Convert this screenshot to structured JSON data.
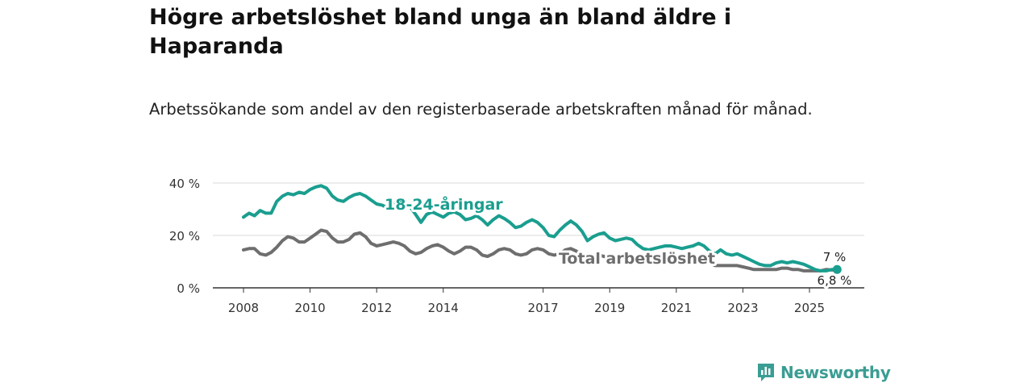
{
  "header": {
    "title": "Högre arbetslöshet bland unga än bland äldre i Haparanda",
    "subtitle": "Arbetssökande som andel av den registerbaserade arbetskraften månad för månad."
  },
  "branding": {
    "name": "Newsworthy",
    "icon": "newsworthy-chart-icon",
    "color": "#3a9d93"
  },
  "chart_data": {
    "type": "line",
    "title": "Högre arbetslöshet bland unga än bland äldre i Haparanda",
    "subtitle": "Arbetssökande som andel av den registerbaserade arbetskraften månad för månad.",
    "xlabel": "",
    "ylabel": "",
    "x_range": [
      2008.0,
      2025.92
    ],
    "ylim": [
      0,
      40
    ],
    "y_ticks": [
      0,
      20,
      40
    ],
    "y_tick_labels": [
      "0 %",
      "20 %",
      "40 %"
    ],
    "x_ticks": [
      2008,
      2010,
      2012,
      2014,
      2017,
      2019,
      2021,
      2023,
      2025
    ],
    "x_tick_labels": [
      "2008",
      "2010",
      "2012",
      "2014",
      "2017",
      "2019",
      "2021",
      "2023",
      "2025"
    ],
    "grid": true,
    "series": [
      {
        "name": "18-24-åringar",
        "label": "18-24-åringar",
        "color": "#1a9e8f",
        "end_label": "7 %",
        "points": [
          [
            2008.0,
            27
          ],
          [
            2008.17,
            28.5
          ],
          [
            2008.33,
            27.5
          ],
          [
            2008.5,
            29.5
          ],
          [
            2008.67,
            28.5
          ],
          [
            2008.83,
            28.5
          ],
          [
            2009.0,
            33
          ],
          [
            2009.17,
            35
          ],
          [
            2009.33,
            36
          ],
          [
            2009.5,
            35.5
          ],
          [
            2009.67,
            36.5
          ],
          [
            2009.83,
            36
          ],
          [
            2010.0,
            37.5
          ],
          [
            2010.17,
            38.5
          ],
          [
            2010.33,
            39
          ],
          [
            2010.5,
            38
          ],
          [
            2010.67,
            35
          ],
          [
            2010.83,
            33.5
          ],
          [
            2011.0,
            33
          ],
          [
            2011.17,
            34.5
          ],
          [
            2011.33,
            35.5
          ],
          [
            2011.5,
            36
          ],
          [
            2011.67,
            35
          ],
          [
            2011.83,
            33.5
          ],
          [
            2012.0,
            32
          ],
          [
            2012.17,
            31.5
          ],
          [
            2012.33,
            30.5
          ],
          [
            2012.5,
            32
          ],
          [
            2012.67,
            33.5
          ],
          [
            2012.83,
            33
          ],
          [
            2013.0,
            31
          ],
          [
            2013.17,
            28
          ],
          [
            2013.33,
            25
          ],
          [
            2013.5,
            28
          ],
          [
            2013.67,
            29
          ],
          [
            2013.83,
            28
          ],
          [
            2014.0,
            27
          ],
          [
            2014.17,
            28.5
          ],
          [
            2014.33,
            29
          ],
          [
            2014.5,
            28
          ],
          [
            2014.67,
            26
          ],
          [
            2014.83,
            26.5
          ],
          [
            2015.0,
            27.5
          ],
          [
            2015.17,
            26
          ],
          [
            2015.33,
            24
          ],
          [
            2015.5,
            26
          ],
          [
            2015.67,
            27.5
          ],
          [
            2015.83,
            26.5
          ],
          [
            2016.0,
            25
          ],
          [
            2016.17,
            23
          ],
          [
            2016.33,
            23.5
          ],
          [
            2016.5,
            25
          ],
          [
            2016.67,
            26
          ],
          [
            2016.83,
            25
          ],
          [
            2017.0,
            23
          ],
          [
            2017.17,
            20
          ],
          [
            2017.33,
            19.5
          ],
          [
            2017.5,
            22
          ],
          [
            2017.67,
            24
          ],
          [
            2017.83,
            25.5
          ],
          [
            2018.0,
            24
          ],
          [
            2018.17,
            21.5
          ],
          [
            2018.33,
            18
          ],
          [
            2018.5,
            19.5
          ],
          [
            2018.67,
            20.5
          ],
          [
            2018.83,
            21
          ],
          [
            2019.0,
            19
          ],
          [
            2019.17,
            18
          ],
          [
            2019.33,
            18.5
          ],
          [
            2019.5,
            19
          ],
          [
            2019.67,
            18.5
          ],
          [
            2019.83,
            16.5
          ],
          [
            2020.0,
            15
          ],
          [
            2020.17,
            14.5
          ],
          [
            2020.33,
            15
          ],
          [
            2020.5,
            15.5
          ],
          [
            2020.67,
            16
          ],
          [
            2020.83,
            16
          ],
          [
            2021.0,
            15.5
          ],
          [
            2021.17,
            15
          ],
          [
            2021.33,
            15.5
          ],
          [
            2021.5,
            16
          ],
          [
            2021.67,
            17
          ],
          [
            2021.83,
            16
          ],
          [
            2022.0,
            14
          ],
          [
            2022.17,
            13
          ],
          [
            2022.33,
            14.5
          ],
          [
            2022.5,
            13
          ],
          [
            2022.67,
            12.5
          ],
          [
            2022.83,
            13
          ],
          [
            2023.0,
            12
          ],
          [
            2023.17,
            11
          ],
          [
            2023.33,
            10
          ],
          [
            2023.5,
            9
          ],
          [
            2023.67,
            8.5
          ],
          [
            2023.83,
            8.5
          ],
          [
            2024.0,
            9.5
          ],
          [
            2024.17,
            10
          ],
          [
            2024.33,
            9.5
          ],
          [
            2024.5,
            10
          ],
          [
            2024.67,
            9.5
          ],
          [
            2024.83,
            9
          ],
          [
            2025.0,
            8
          ],
          [
            2025.17,
            7
          ],
          [
            2025.33,
            6.5
          ],
          [
            2025.5,
            6.5
          ],
          [
            2025.67,
            7
          ],
          [
            2025.83,
            7
          ]
        ]
      },
      {
        "name": "Total arbetslöshet",
        "label": "Total arbetslöshet",
        "color": "#6e6e6e",
        "end_label": "6,8 %",
        "points": [
          [
            2008.0,
            14.5
          ],
          [
            2008.17,
            15
          ],
          [
            2008.33,
            15
          ],
          [
            2008.5,
            13
          ],
          [
            2008.67,
            12.5
          ],
          [
            2008.83,
            13.5
          ],
          [
            2009.0,
            15.5
          ],
          [
            2009.17,
            18
          ],
          [
            2009.33,
            19.5
          ],
          [
            2009.5,
            19
          ],
          [
            2009.67,
            17.5
          ],
          [
            2009.83,
            17.5
          ],
          [
            2010.0,
            19
          ],
          [
            2010.17,
            20.5
          ],
          [
            2010.33,
            22
          ],
          [
            2010.5,
            21.5
          ],
          [
            2010.67,
            19
          ],
          [
            2010.83,
            17.5
          ],
          [
            2011.0,
            17.5
          ],
          [
            2011.17,
            18.5
          ],
          [
            2011.33,
            20.5
          ],
          [
            2011.5,
            21
          ],
          [
            2011.67,
            19.5
          ],
          [
            2011.83,
            17
          ],
          [
            2012.0,
            16
          ],
          [
            2012.17,
            16.5
          ],
          [
            2012.33,
            17
          ],
          [
            2012.5,
            17.5
          ],
          [
            2012.67,
            17
          ],
          [
            2012.83,
            16
          ],
          [
            2013.0,
            14
          ],
          [
            2013.17,
            13
          ],
          [
            2013.33,
            13.5
          ],
          [
            2013.5,
            15
          ],
          [
            2013.67,
            16
          ],
          [
            2013.83,
            16.5
          ],
          [
            2014.0,
            15.5
          ],
          [
            2014.17,
            14
          ],
          [
            2014.33,
            13
          ],
          [
            2014.5,
            14
          ],
          [
            2014.67,
            15.5
          ],
          [
            2014.83,
            15.5
          ],
          [
            2015.0,
            14.5
          ],
          [
            2015.17,
            12.5
          ],
          [
            2015.33,
            12
          ],
          [
            2015.5,
            13
          ],
          [
            2015.67,
            14.5
          ],
          [
            2015.83,
            15
          ],
          [
            2016.0,
            14.5
          ],
          [
            2016.17,
            13
          ],
          [
            2016.33,
            12.5
          ],
          [
            2016.5,
            13
          ],
          [
            2016.67,
            14.5
          ],
          [
            2016.83,
            15
          ],
          [
            2017.0,
            14.5
          ],
          [
            2017.17,
            13
          ],
          [
            2017.33,
            12.5
          ],
          [
            2017.5,
            13
          ],
          [
            2017.67,
            14.5
          ],
          [
            2017.83,
            15
          ],
          [
            2018.0,
            14
          ],
          [
            2018.17,
            12.5
          ],
          [
            2018.33,
            12
          ],
          [
            2018.5,
            12.5
          ],
          [
            2018.67,
            12.5
          ],
          [
            2018.83,
            12
          ],
          [
            2019.0,
            11.5
          ],
          [
            2019.17,
            11
          ],
          [
            2019.33,
            11
          ],
          [
            2019.5,
            11
          ],
          [
            2019.67,
            11
          ],
          [
            2019.83,
            11
          ],
          [
            2020.0,
            11
          ],
          [
            2020.17,
            11
          ],
          [
            2020.33,
            11
          ],
          [
            2020.5,
            11
          ],
          [
            2020.67,
            11
          ],
          [
            2020.83,
            11
          ],
          [
            2021.0,
            11
          ],
          [
            2021.17,
            11
          ],
          [
            2021.33,
            10.5
          ],
          [
            2021.5,
            10.5
          ],
          [
            2021.67,
            10.5
          ],
          [
            2021.83,
            10
          ],
          [
            2022.0,
            9.5
          ],
          [
            2022.17,
            8.5
          ],
          [
            2022.33,
            8.5
          ],
          [
            2022.5,
            8.5
          ],
          [
            2022.67,
            8.5
          ],
          [
            2022.83,
            8.5
          ],
          [
            2023.0,
            8
          ],
          [
            2023.17,
            7.5
          ],
          [
            2023.33,
            7
          ],
          [
            2023.5,
            7
          ],
          [
            2023.67,
            7
          ],
          [
            2023.83,
            7
          ],
          [
            2024.0,
            7
          ],
          [
            2024.17,
            7.5
          ],
          [
            2024.33,
            7.5
          ],
          [
            2024.5,
            7
          ],
          [
            2024.67,
            7
          ],
          [
            2024.83,
            6.5
          ],
          [
            2025.0,
            6.5
          ],
          [
            2025.17,
            6.5
          ],
          [
            2025.33,
            6.5
          ],
          [
            2025.5,
            7
          ],
          [
            2025.67,
            6.8
          ],
          [
            2025.83,
            6.8
          ]
        ]
      }
    ]
  }
}
